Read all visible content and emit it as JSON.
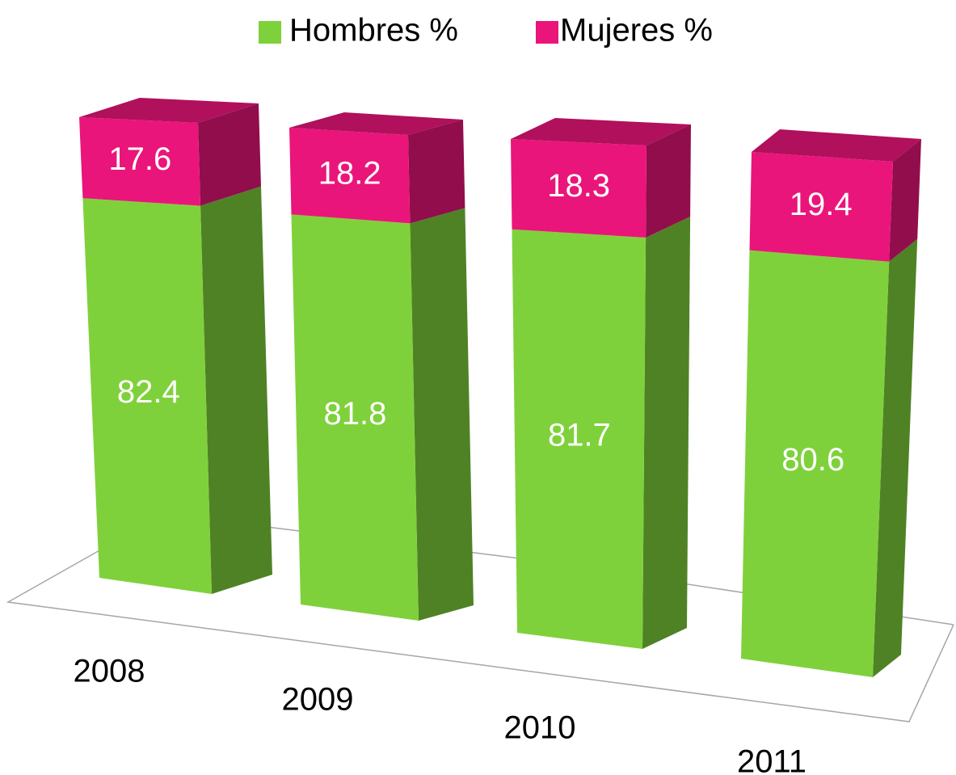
{
  "chart_data": {
    "type": "bar3d_stacked",
    "categories": [
      "2008",
      "2009",
      "2010",
      "2011"
    ],
    "series": [
      {
        "name": "Hombres %",
        "color": "#7fd13b",
        "values": [
          82.4,
          81.8,
          81.7,
          80.6
        ]
      },
      {
        "name": "Mujeres %",
        "color": "#ea157a",
        "values": [
          17.6,
          18.2,
          18.3,
          19.4
        ]
      }
    ],
    "legend": "top"
  }
}
